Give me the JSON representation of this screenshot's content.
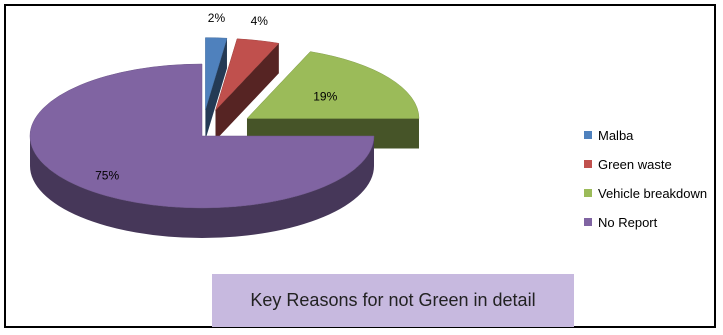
{
  "chart_data": {
    "type": "pie",
    "title": "Key Reasons for not Green in detail",
    "slices": [
      {
        "label": "Malba",
        "value": 2,
        "data_label": "2%",
        "color": "#4f81bd",
        "exploded": true
      },
      {
        "label": "Green waste",
        "value": 4,
        "data_label": "4%",
        "color": "#c0504d",
        "exploded": true
      },
      {
        "label": "Vehicle breakdown",
        "value": 19,
        "data_label": "19%",
        "color": "#9bbb59",
        "exploded": true
      },
      {
        "label": "No Report",
        "value": 75,
        "data_label": "75%",
        "color": "#8064a2",
        "exploded": false
      }
    ],
    "legend_position": "right",
    "style": "3D exploded pie"
  }
}
